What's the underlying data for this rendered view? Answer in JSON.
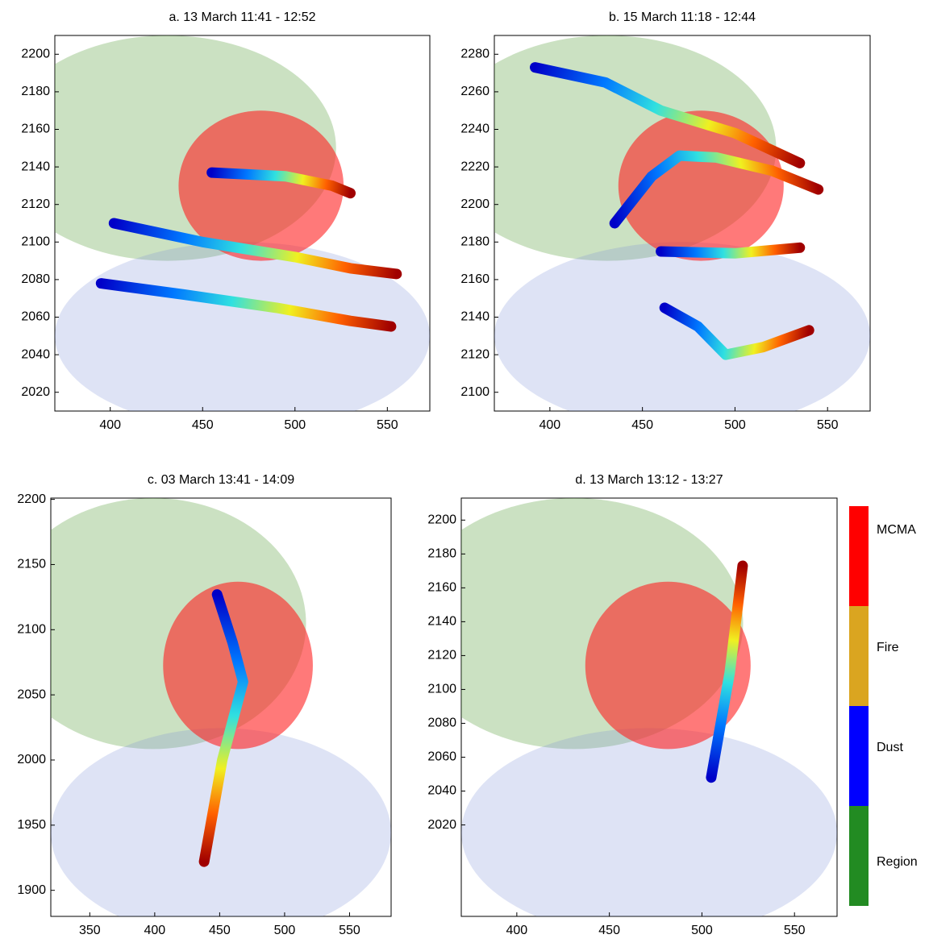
{
  "chart_data": [
    {
      "type": "track",
      "title": "a. 13 March 11:41 - 12:52",
      "xlim": [
        370,
        573
      ],
      "ylim": [
        2010,
        2210
      ],
      "xticks": [
        400,
        450,
        500,
        550
      ],
      "yticks": [
        2020,
        2040,
        2060,
        2080,
        2100,
        2120,
        2140,
        2160,
        2180,
        2200
      ],
      "tracks": [
        {
          "x": [
            455,
            495,
            520,
            530
          ],
          "y": [
            2137,
            2135,
            2130,
            2126
          ]
        },
        {
          "x": [
            402,
            450,
            500,
            530,
            555
          ],
          "y": [
            2110,
            2100,
            2092,
            2086,
            2083
          ]
        },
        {
          "x": [
            395,
            440,
            490,
            530,
            552
          ],
          "y": [
            2078,
            2072,
            2065,
            2058,
            2055
          ]
        }
      ]
    },
    {
      "type": "track",
      "title": "b. 15 March 11:18 - 12:44",
      "xlim": [
        370,
        573
      ],
      "ylim": [
        2090,
        2290
      ],
      "xticks": [
        400,
        450,
        500,
        550
      ],
      "yticks": [
        2100,
        2120,
        2140,
        2160,
        2180,
        2200,
        2220,
        2240,
        2260,
        2280
      ],
      "tracks": [
        {
          "x": [
            392,
            430,
            460,
            500,
            535
          ],
          "y": [
            2273,
            2265,
            2250,
            2238,
            2222
          ]
        },
        {
          "x": [
            435,
            455,
            470,
            490,
            520,
            545
          ],
          "y": [
            2190,
            2215,
            2226,
            2225,
            2218,
            2208
          ]
        },
        {
          "x": [
            460,
            500,
            535
          ],
          "y": [
            2175,
            2174,
            2177
          ]
        },
        {
          "x": [
            462,
            480,
            495,
            515,
            540
          ],
          "y": [
            2145,
            2135,
            2120,
            2124,
            2133
          ]
        }
      ]
    },
    {
      "type": "track",
      "title": "c. 03 March 13:41 - 14:09",
      "xlim": [
        320,
        582
      ],
      "ylim": [
        1880,
        2201
      ],
      "xticks": [
        350,
        400,
        450,
        500,
        550
      ],
      "yticks": [
        1900,
        1950,
        2000,
        2050,
        2100,
        2150,
        2200
      ],
      "tracks": [
        {
          "x": [
            448,
            460,
            468,
            452,
            438
          ],
          "y": [
            2127,
            2090,
            2060,
            2000,
            1922
          ]
        }
      ]
    },
    {
      "type": "track",
      "title": "d. 13 March 13:12 - 13:27",
      "xlim": [
        370,
        573
      ],
      "ylim": [
        1966,
        2213
      ],
      "xticks": [
        400,
        450,
        500,
        550
      ],
      "yticks": [
        2020,
        2040,
        2060,
        2080,
        2100,
        2120,
        2140,
        2160,
        2180,
        2200
      ],
      "tracks": [
        {
          "x": [
            505,
            515,
            522
          ],
          "y": [
            2048,
            2110,
            2173
          ]
        }
      ]
    }
  ],
  "legend": {
    "labels": [
      "MCMA",
      "Fire",
      "Dust",
      "Region"
    ],
    "colors": [
      "#ff0000",
      "#daa520",
      "#0000ff",
      "#228b22"
    ]
  }
}
